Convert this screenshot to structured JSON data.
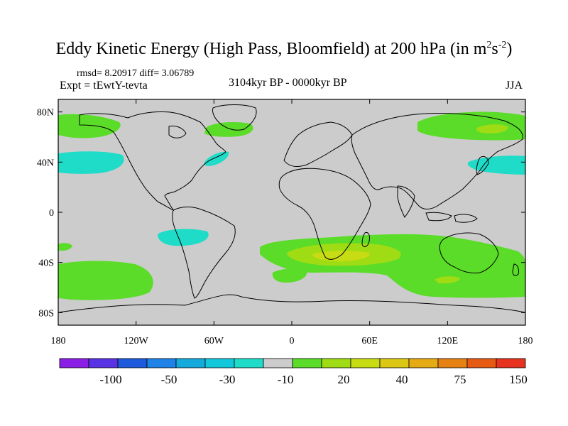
{
  "figure": {
    "title": "Eddy Kinetic Energy (High Pass, Bloomfield) at 200 hPa (in m",
    "title_unit_sup1": "2",
    "title_unit_mid": "s",
    "title_unit_sup2": "-2",
    "title_close": ")",
    "stats": "rmsd= 8.20917 diff= 3.06789",
    "experiment": "Expt = tEwtY-tevta",
    "period": "3104kyr BP - 0000kyr BP",
    "season": "JJA"
  },
  "chart_data": {
    "type": "filled-contour-map",
    "projection": "cylindrical-equidistant",
    "x_ticks": [
      "180",
      "120W",
      "60W",
      "0",
      "60E",
      "120E",
      "180"
    ],
    "y_ticks": [
      "80N",
      "40N",
      "0",
      "40S",
      "80S"
    ],
    "lon_range": [
      -180,
      180
    ],
    "lat_range": [
      -90,
      90
    ],
    "colorbar": {
      "colors": [
        "#8a1ee6",
        "#5a32e6",
        "#1e5adc",
        "#1e82e6",
        "#14aadc",
        "#14c8dc",
        "#1edcc8",
        "#cccccc",
        "#5adc28",
        "#a0dc14",
        "#c8dc14",
        "#dcc814",
        "#e6aa14",
        "#e68214",
        "#e65a14",
        "#e6321e"
      ],
      "labels": [
        "-100",
        "-50",
        "-30",
        "-10",
        "20",
        "40",
        "75",
        "150"
      ]
    },
    "regions": [
      {
        "level": "20",
        "color": "#5adc28",
        "desc": "North Pacific / Alaska band"
      },
      {
        "level": "20",
        "color": "#5adc28",
        "desc": "Greenland / Labrador band"
      },
      {
        "level": "20",
        "color": "#5adc28",
        "desc": "Siberia / North Pacific band"
      },
      {
        "level": "40",
        "color": "#a0dc14",
        "desc": "Far east Siberia maximum"
      },
      {
        "level": "-10",
        "color": "#1edcc8",
        "desc": "North Pacific jet"
      },
      {
        "level": "-10",
        "color": "#1edcc8",
        "desc": "Western North Atlantic"
      },
      {
        "level": "-10",
        "color": "#1edcc8",
        "desc": "Kuroshio extension"
      },
      {
        "level": "-10",
        "color": "#1edcc8",
        "desc": "Subtropical South Pacific"
      },
      {
        "level": "20",
        "color": "#5adc28",
        "desc": "South Pacific storm track"
      },
      {
        "level": "20",
        "color": "#5adc28",
        "desc": "Southern Ocean Atlantic-Indian band"
      },
      {
        "level": "40",
        "color": "#a0dc14",
        "desc": "South Indian Ocean maximum"
      },
      {
        "level": "20",
        "color": "#5adc28",
        "desc": "South Atlantic patch"
      }
    ]
  }
}
